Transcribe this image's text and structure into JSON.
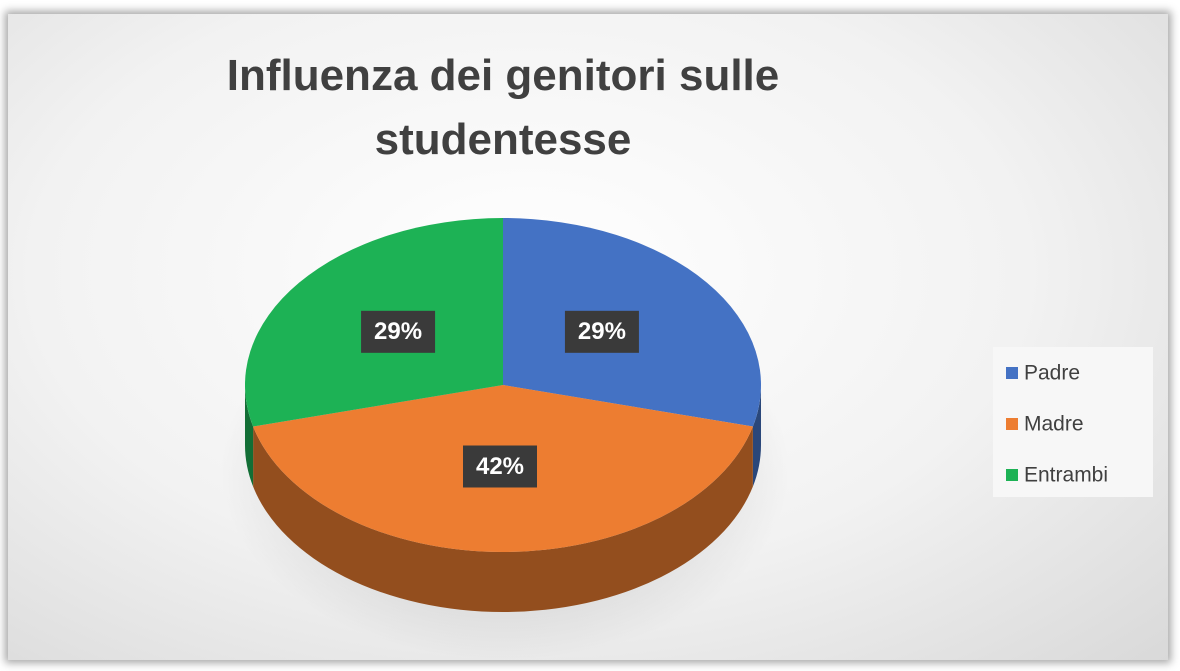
{
  "chart_data": {
    "type": "pie3d",
    "title": "Influenza dei genitori sulle studentesse",
    "categories": [
      "Padre",
      "Madre",
      "Entrambi"
    ],
    "values": [
      29,
      42,
      29
    ],
    "value_labels": [
      "29%",
      "42%",
      "29%"
    ],
    "colors": [
      "#4472c4",
      "#ed7d31",
      "#1db255"
    ],
    "legend": "right"
  }
}
